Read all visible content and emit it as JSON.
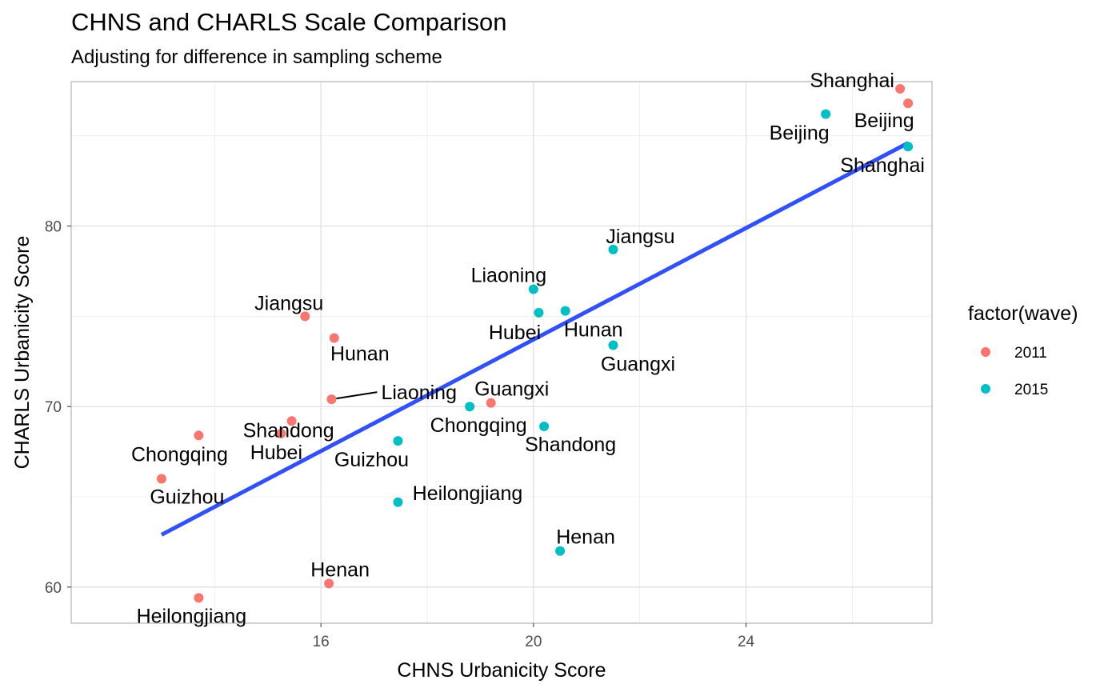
{
  "chart_data": {
    "type": "scatter",
    "title": "CHNS and CHARLS Scale Comparison",
    "subtitle": "Adjusting for difference in sampling scheme",
    "xlabel": "CHNS Urbanicity Score",
    "ylabel": "CHARLS Urbanicity Score",
    "xlim": [
      11.3,
      27.5
    ],
    "ylim": [
      58,
      88
    ],
    "x_ticks": [
      16,
      20,
      24
    ],
    "y_ticks": [
      60,
      70,
      80
    ],
    "x_tick_labels": [
      "16",
      "20",
      "24"
    ],
    "y_tick_labels": [
      "60",
      "70",
      "80"
    ],
    "grid": true,
    "legend": {
      "title": "factor(wave)",
      "position": "right",
      "entries": [
        {
          "label": "2011",
          "color": "#F8766D"
        },
        {
          "label": "2015",
          "color": "#00BFC4"
        }
      ]
    },
    "series": [
      {
        "name": "2011",
        "color": "#F8766D",
        "points": [
          {
            "label": "Shanghai",
            "x": 26.9,
            "y": 87.6
          },
          {
            "label": "Beijing",
            "x": 27.05,
            "y": 86.8
          },
          {
            "label": "Jiangsu",
            "x": 15.7,
            "y": 75.0
          },
          {
            "label": "Hunan",
            "x": 16.25,
            "y": 73.8
          },
          {
            "label": "Liaoning",
            "x": 16.2,
            "y": 70.4
          },
          {
            "label": "Guangxi",
            "x": 19.2,
            "y": 70.2
          },
          {
            "label": "Shandong",
            "x": 15.45,
            "y": 69.2
          },
          {
            "label": "Hubei",
            "x": 15.25,
            "y": 68.5
          },
          {
            "label": "Chongqing",
            "x": 13.7,
            "y": 68.4
          },
          {
            "label": "Guizhou",
            "x": 13.0,
            "y": 66.0
          },
          {
            "label": "Henan",
            "x": 16.15,
            "y": 60.2
          },
          {
            "label": "Heilongjiang",
            "x": 13.7,
            "y": 59.4
          }
        ]
      },
      {
        "name": "2015",
        "color": "#00BFC4",
        "points": [
          {
            "label": "Beijing",
            "x": 25.5,
            "y": 86.2
          },
          {
            "label": "Shanghai",
            "x": 27.05,
            "y": 84.4
          },
          {
            "label": "Jiangsu",
            "x": 21.5,
            "y": 78.7
          },
          {
            "label": "Liaoning",
            "x": 20.0,
            "y": 76.5
          },
          {
            "label": "Hubei",
            "x": 20.1,
            "y": 75.2
          },
          {
            "label": "Hunan",
            "x": 20.6,
            "y": 75.3
          },
          {
            "label": "Guangxi",
            "x": 21.5,
            "y": 73.4
          },
          {
            "label": "Chongqing",
            "x": 18.8,
            "y": 70.0
          },
          {
            "label": "Shandong",
            "x": 20.2,
            "y": 68.9
          },
          {
            "label": "Guizhou",
            "x": 17.45,
            "y": 68.1
          },
          {
            "label": "Heilongjiang",
            "x": 17.45,
            "y": 64.7
          },
          {
            "label": "Henan",
            "x": 20.5,
            "y": 62.0
          }
        ]
      }
    ],
    "trend_line": {
      "x": [
        13.0,
        27.05
      ],
      "y": [
        62.9,
        84.6
      ],
      "color": "#3050F8"
    }
  }
}
